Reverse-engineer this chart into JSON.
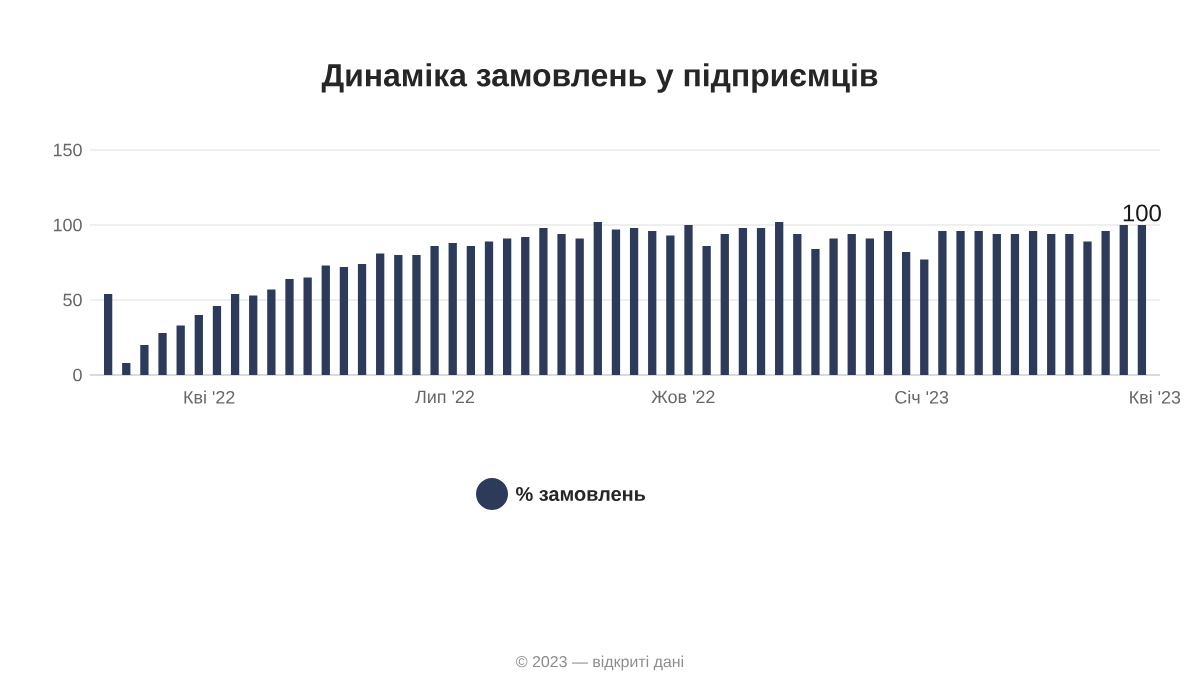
{
  "chart_data": {
    "type": "bar",
    "title": "Динаміка замовлень у підприємців",
    "x": [
      "2022-02-21",
      "2022-02-28",
      "2022-03-07",
      "2022-03-14",
      "2022-03-21",
      "2022-03-28",
      "2022-04-04",
      "2022-04-11",
      "2022-04-18",
      "2022-04-25",
      "2022-05-02",
      "2022-05-09",
      "2022-05-16",
      "2022-05-23",
      "2022-05-30",
      "2022-06-06",
      "2022-06-13",
      "2022-06-20",
      "2022-06-27",
      "2022-07-04",
      "2022-07-11",
      "2022-07-18",
      "2022-07-25",
      "2022-08-01",
      "2022-08-08",
      "2022-08-15",
      "2022-08-22",
      "2022-08-29",
      "2022-09-05",
      "2022-09-12",
      "2022-09-19",
      "2022-09-26",
      "2022-10-03",
      "2022-10-10",
      "2022-10-17",
      "2022-10-24",
      "2022-10-31",
      "2022-11-07",
      "2022-11-14",
      "2022-11-21",
      "2022-11-28",
      "2022-12-05",
      "2022-12-12",
      "2022-12-19",
      "2022-12-26",
      "2023-01-02",
      "2023-01-09",
      "2023-01-16",
      "2023-01-23",
      "2023-01-30",
      "2023-02-06",
      "2023-02-13",
      "2023-02-20",
      "2023-02-27",
      "2023-03-06",
      "2023-03-13",
      "2023-03-20",
      "2023-03-27"
    ],
    "series": [
      {
        "name": "% замовлень",
        "color": "#2d3a5a",
        "values": [
          54,
          8,
          20,
          28,
          33,
          40,
          46,
          54,
          53,
          57,
          64,
          65,
          73,
          72,
          74,
          81,
          80,
          80,
          86,
          88,
          86,
          89,
          91,
          92,
          98,
          94,
          91,
          102,
          97,
          98,
          96,
          93,
          100,
          86,
          94,
          98,
          98,
          102,
          94,
          84,
          91,
          94,
          91,
          96,
          82,
          77,
          96,
          96,
          96,
          94,
          94,
          96,
          94,
          94,
          89,
          96,
          100,
          100
        ],
        "value_labels": [
          null,
          null,
          null,
          null,
          null,
          null,
          null,
          null,
          null,
          null,
          null,
          null,
          null,
          null,
          null,
          null,
          null,
          null,
          null,
          null,
          null,
          null,
          null,
          null,
          null,
          null,
          null,
          null,
          null,
          null,
          null,
          null,
          null,
          null,
          null,
          null,
          null,
          null,
          null,
          null,
          null,
          null,
          null,
          null,
          null,
          null,
          null,
          null,
          null,
          null,
          null,
          null,
          null,
          null,
          null,
          null,
          null,
          "100"
        ]
      }
    ],
    "xlim": [
      "2022-02-14",
      "2023-04-03"
    ],
    "xticks": [
      {
        "value": "2022-04-01",
        "label": "Кві '22"
      },
      {
        "value": "2022-07-01",
        "label": "Лип '22"
      },
      {
        "value": "2022-10-01",
        "label": "Жов '22"
      },
      {
        "value": "2023-01-01",
        "label": "Січ '23"
      },
      {
        "value": "2023-04-01",
        "label": "Кві '23"
      }
    ],
    "ylim": [
      0,
      150
    ],
    "yticks": [
      0,
      50,
      100,
      150
    ],
    "grid": "y",
    "legend": "bottom",
    "annotations": [
      "© 2023 — відкриті дані"
    ]
  }
}
